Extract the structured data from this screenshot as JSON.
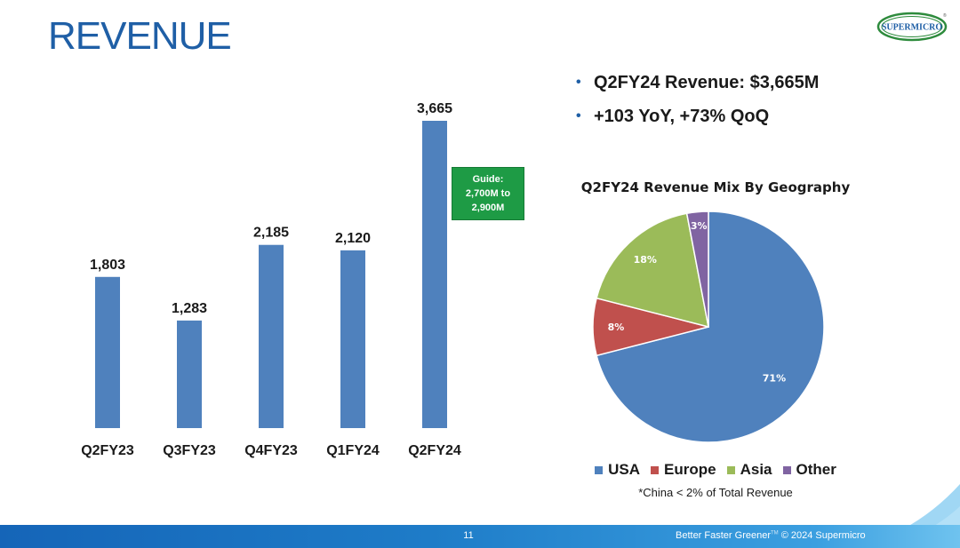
{
  "header": {
    "title": "REVENUE",
    "logo_text": "SUPERMICRO",
    "logo_mark": "®"
  },
  "bullets": [
    "Q2FY24 Revenue: $3,665M",
    "+103 YoY, +73% QoQ"
  ],
  "guide_box": {
    "line1": "Guide:",
    "line2": "2,700M to",
    "line3": "2,900M",
    "color": "#1e9b45"
  },
  "pie": {
    "legend_items": [
      "USA",
      "Europe",
      "Asia",
      "Other"
    ],
    "footnote": "*China < 2% of Total Revenue"
  },
  "footer": {
    "page_number": "11",
    "tagline": "Better Faster Greener",
    "tm": "TM",
    "copyright": "© 2024 Supermicro"
  },
  "colors": {
    "title_blue": "#1f5fa6",
    "bar_blue": "#4f81bd",
    "usa": "#4f81bd",
    "europe": "#c0504d",
    "asia": "#9bbb59",
    "other": "#8064a2"
  },
  "chart_data": [
    {
      "type": "bar",
      "title": "",
      "categories": [
        "Q2FY23",
        "Q3FY23",
        "Q4FY23",
        "Q1FY24",
        "Q2FY24"
      ],
      "values": [
        1803,
        1283,
        2185,
        2120,
        3665
      ],
      "value_labels": [
        "1,803",
        "1,283",
        "2,185",
        "2,120",
        "3,665"
      ],
      "xlabel": "",
      "ylabel": "",
      "ylim": [
        0,
        3665
      ],
      "grid": false
    },
    {
      "type": "pie",
      "title": "Q2FY24 Revenue Mix By Geography",
      "labels": [
        "USA",
        "Europe",
        "Asia",
        "Other"
      ],
      "values": [
        71,
        8,
        18,
        3
      ],
      "value_labels": [
        "71%",
        "8%",
        "18%",
        "3%"
      ],
      "legend": "bottom"
    }
  ]
}
